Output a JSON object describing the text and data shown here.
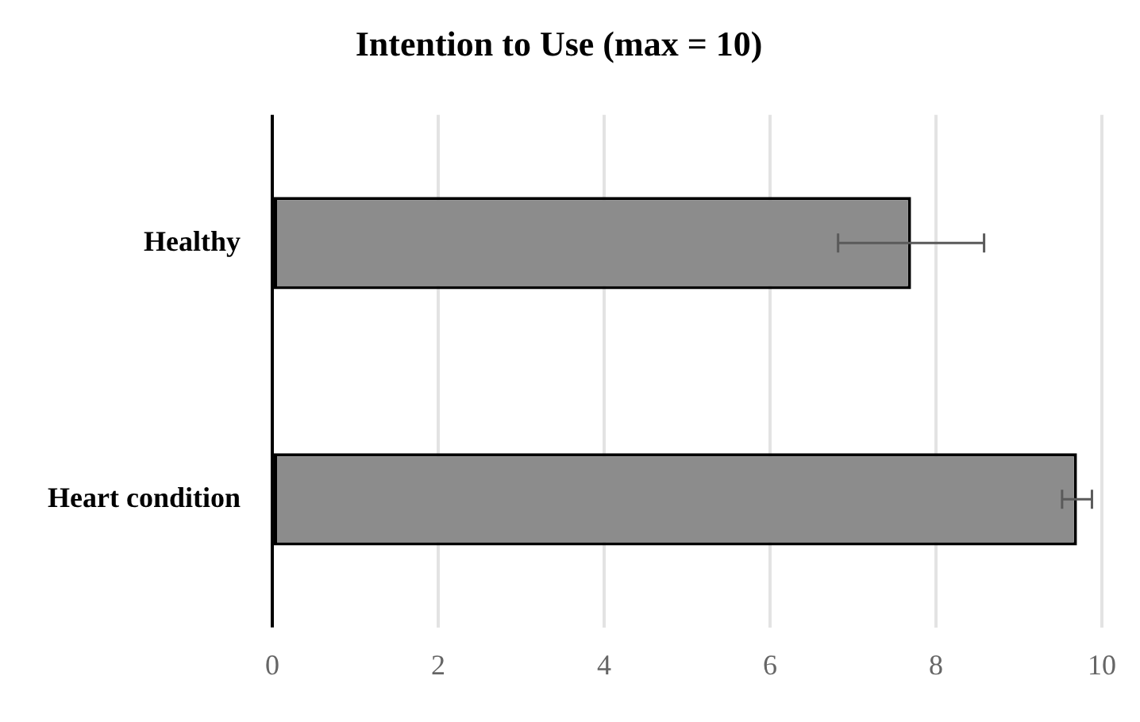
{
  "chart_data": {
    "type": "bar",
    "orientation": "horizontal",
    "title": "Intention to Use (max = 10)",
    "categories": [
      "Healthy",
      "Heart condition"
    ],
    "values": [
      7.7,
      9.7
    ],
    "errors": [
      0.88,
      0.18
    ],
    "color": "#8c8c8c",
    "xlim": [
      0,
      10
    ],
    "xticks": [
      0,
      2,
      4,
      6,
      8,
      10
    ],
    "grid": "x",
    "legend": false
  }
}
